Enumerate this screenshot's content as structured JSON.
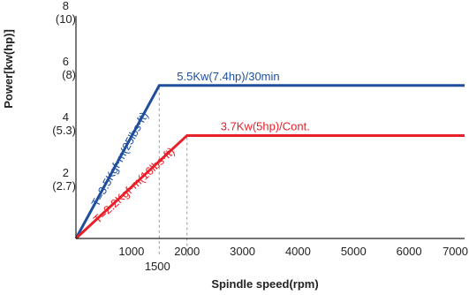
{
  "chart_data": {
    "type": "line",
    "xlabel": "Spindle speed(rpm)",
    "ylabel": "Power[kw(hp)]",
    "xlim": [
      0,
      7000
    ],
    "ylim": [
      0,
      8
    ],
    "x_ticks": [
      {
        "value": 1000,
        "label": "1000"
      },
      {
        "value": 2000,
        "label": "2000"
      },
      {
        "value": 3000,
        "label": "3000"
      },
      {
        "value": 4000,
        "label": "4000"
      },
      {
        "value": 5000,
        "label": "5000"
      },
      {
        "value": 6000,
        "label": "6000"
      },
      {
        "value": 7000,
        "label": "7000"
      }
    ],
    "x_extra_tick": {
      "value": 1500,
      "label": "1500"
    },
    "y_ticks": [
      {
        "value": 2,
        "label": "2",
        "sublabel": "(2.7)"
      },
      {
        "value": 4,
        "label": "4",
        "sublabel": "(5.3)"
      },
      {
        "value": 6,
        "label": "6",
        "sublabel": "(8)"
      },
      {
        "value": 8,
        "label": "8",
        "sublabel": "(10)"
      }
    ],
    "grid": false,
    "series": [
      {
        "color": "#1f4e9c",
        "points": [
          [
            0,
            0
          ],
          [
            1500,
            5.5
          ],
          [
            7000,
            5.5
          ]
        ],
        "corner_label": "5.5Kw(7.4hp)/30min",
        "ramp_label": "T=3.5Kgf·m(25lbs·ft)"
      },
      {
        "color": "#e8202a",
        "points": [
          [
            0,
            0
          ],
          [
            2000,
            3.7
          ],
          [
            7000,
            3.7
          ]
        ],
        "corner_label": "3.7Kw(5hp)/Cont.",
        "ramp_label": "T=2.2Kgf·m(16lbs·ft)"
      }
    ],
    "dashed_guides_x": [
      1500,
      2000
    ]
  }
}
